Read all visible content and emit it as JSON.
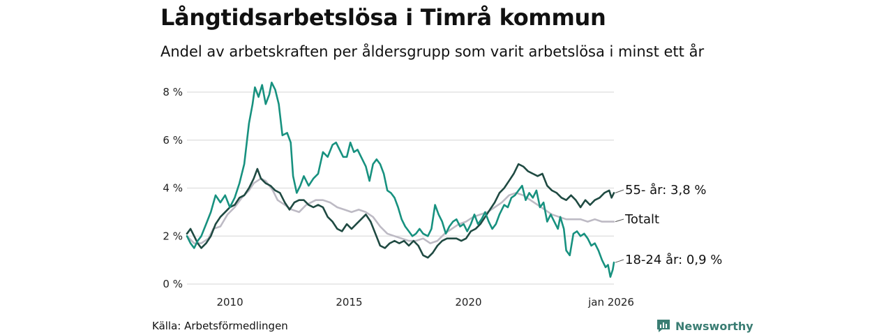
{
  "header": {
    "title": "Långtidsarbetslösa i Timrå kommun",
    "subtitle": "Andel av arbetskraften per åldersgrupp som varit arbetslösa i minst ett år"
  },
  "footer": {
    "source": "Källa: Arbetsförmedlingen",
    "brand": "Newsworthy"
  },
  "colors": {
    "youth": "#17917f",
    "senior": "#1f4a42",
    "total": "#bdbac4",
    "grid": "#dddddd",
    "brand": "#3a7d73"
  },
  "chart_data": {
    "type": "line",
    "title": "Långtidsarbetslösa i Timrå kommun",
    "subtitle": "Andel av arbetskraften per åldersgrupp som varit arbetslösa i minst ett år",
    "xlabel": "",
    "ylabel": "",
    "xlim": [
      2008.2,
      2026.1
    ],
    "ylim": [
      0,
      8
    ],
    "yticks": [
      0,
      2,
      4,
      6,
      8
    ],
    "ytick_labels": [
      "0 %",
      "2 %",
      "4 %",
      "6 %",
      "8 %"
    ],
    "xticks": [
      2010,
      2015,
      2020,
      2026.1
    ],
    "xtick_labels": [
      "2010",
      "2015",
      "2020",
      "jan 2026"
    ],
    "grid": true,
    "series": [
      {
        "name": "Totalt",
        "label": "Totalt",
        "color": "#bdbac4",
        "points": [
          [
            2008.2,
            2.0
          ],
          [
            2008.5,
            1.7
          ],
          [
            2008.8,
            1.7
          ],
          [
            2009.1,
            1.9
          ],
          [
            2009.3,
            2.3
          ],
          [
            2009.6,
            2.4
          ],
          [
            2009.9,
            2.9
          ],
          [
            2010.2,
            3.2
          ],
          [
            2010.5,
            3.6
          ],
          [
            2010.8,
            3.9
          ],
          [
            2011.0,
            4.2
          ],
          [
            2011.3,
            4.4
          ],
          [
            2011.5,
            4.3
          ],
          [
            2011.8,
            3.9
          ],
          [
            2012.0,
            3.5
          ],
          [
            2012.3,
            3.3
          ],
          [
            2012.6,
            3.1
          ],
          [
            2012.9,
            3.0
          ],
          [
            2013.2,
            3.3
          ],
          [
            2013.6,
            3.5
          ],
          [
            2013.9,
            3.5
          ],
          [
            2014.2,
            3.4
          ],
          [
            2014.5,
            3.2
          ],
          [
            2014.8,
            3.1
          ],
          [
            2015.1,
            3.0
          ],
          [
            2015.4,
            3.1
          ],
          [
            2015.7,
            3.0
          ],
          [
            2016.0,
            2.8
          ],
          [
            2016.3,
            2.4
          ],
          [
            2016.6,
            2.1
          ],
          [
            2016.9,
            2.0
          ],
          [
            2017.2,
            1.9
          ],
          [
            2017.5,
            1.8
          ],
          [
            2017.8,
            1.8
          ],
          [
            2018.1,
            1.9
          ],
          [
            2018.4,
            1.7
          ],
          [
            2018.7,
            1.8
          ],
          [
            2019.0,
            2.1
          ],
          [
            2019.3,
            2.3
          ],
          [
            2019.6,
            2.5
          ],
          [
            2019.9,
            2.6
          ],
          [
            2020.2,
            2.8
          ],
          [
            2020.5,
            2.9
          ],
          [
            2020.8,
            3.0
          ],
          [
            2021.1,
            3.2
          ],
          [
            2021.4,
            3.4
          ],
          [
            2021.7,
            3.7
          ],
          [
            2022.0,
            3.8
          ],
          [
            2022.3,
            3.7
          ],
          [
            2022.6,
            3.5
          ],
          [
            2022.9,
            3.3
          ],
          [
            2023.2,
            3.1
          ],
          [
            2023.5,
            2.9
          ],
          [
            2023.8,
            2.8
          ],
          [
            2024.1,
            2.7
          ],
          [
            2024.4,
            2.7
          ],
          [
            2024.7,
            2.7
          ],
          [
            2025.0,
            2.6
          ],
          [
            2025.3,
            2.7
          ],
          [
            2025.6,
            2.6
          ],
          [
            2025.9,
            2.6
          ],
          [
            2026.1,
            2.6
          ]
        ]
      },
      {
        "name": "55- år",
        "label": "55- år: 3,8 %",
        "color": "#1f4a42",
        "points": [
          [
            2008.2,
            2.1
          ],
          [
            2008.35,
            2.3
          ],
          [
            2008.5,
            2.0
          ],
          [
            2008.65,
            1.7
          ],
          [
            2008.8,
            1.5
          ],
          [
            2009.0,
            1.7
          ],
          [
            2009.2,
            2.0
          ],
          [
            2009.4,
            2.5
          ],
          [
            2009.6,
            2.8
          ],
          [
            2009.8,
            3.0
          ],
          [
            2010.0,
            3.2
          ],
          [
            2010.2,
            3.3
          ],
          [
            2010.4,
            3.6
          ],
          [
            2010.6,
            3.7
          ],
          [
            2010.8,
            4.0
          ],
          [
            2011.0,
            4.4
          ],
          [
            2011.15,
            4.8
          ],
          [
            2011.3,
            4.4
          ],
          [
            2011.5,
            4.2
          ],
          [
            2011.7,
            4.1
          ],
          [
            2011.9,
            3.9
          ],
          [
            2012.1,
            3.8
          ],
          [
            2012.3,
            3.4
          ],
          [
            2012.5,
            3.1
          ],
          [
            2012.7,
            3.4
          ],
          [
            2012.9,
            3.5
          ],
          [
            2013.1,
            3.5
          ],
          [
            2013.3,
            3.3
          ],
          [
            2013.5,
            3.2
          ],
          [
            2013.7,
            3.3
          ],
          [
            2013.9,
            3.2
          ],
          [
            2014.1,
            2.8
          ],
          [
            2014.3,
            2.6
          ],
          [
            2014.5,
            2.3
          ],
          [
            2014.7,
            2.2
          ],
          [
            2014.9,
            2.5
          ],
          [
            2015.1,
            2.3
          ],
          [
            2015.3,
            2.5
          ],
          [
            2015.5,
            2.7
          ],
          [
            2015.7,
            2.9
          ],
          [
            2015.9,
            2.6
          ],
          [
            2016.1,
            2.1
          ],
          [
            2016.3,
            1.6
          ],
          [
            2016.5,
            1.5
          ],
          [
            2016.7,
            1.7
          ],
          [
            2016.9,
            1.8
          ],
          [
            2017.1,
            1.7
          ],
          [
            2017.3,
            1.8
          ],
          [
            2017.5,
            1.6
          ],
          [
            2017.7,
            1.8
          ],
          [
            2017.9,
            1.6
          ],
          [
            2018.1,
            1.2
          ],
          [
            2018.3,
            1.1
          ],
          [
            2018.5,
            1.3
          ],
          [
            2018.7,
            1.6
          ],
          [
            2018.9,
            1.8
          ],
          [
            2019.1,
            1.9
          ],
          [
            2019.3,
            1.9
          ],
          [
            2019.5,
            1.9
          ],
          [
            2019.7,
            1.8
          ],
          [
            2019.9,
            1.9
          ],
          [
            2020.1,
            2.2
          ],
          [
            2020.3,
            2.3
          ],
          [
            2020.5,
            2.5
          ],
          [
            2020.7,
            2.8
          ],
          [
            2020.9,
            3.1
          ],
          [
            2021.1,
            3.4
          ],
          [
            2021.3,
            3.8
          ],
          [
            2021.5,
            4.0
          ],
          [
            2021.7,
            4.3
          ],
          [
            2021.9,
            4.6
          ],
          [
            2022.1,
            5.0
          ],
          [
            2022.3,
            4.9
          ],
          [
            2022.5,
            4.7
          ],
          [
            2022.7,
            4.6
          ],
          [
            2022.9,
            4.5
          ],
          [
            2023.1,
            4.6
          ],
          [
            2023.3,
            4.1
          ],
          [
            2023.5,
            3.9
          ],
          [
            2023.7,
            3.8
          ],
          [
            2023.9,
            3.6
          ],
          [
            2024.1,
            3.5
          ],
          [
            2024.3,
            3.7
          ],
          [
            2024.5,
            3.5
          ],
          [
            2024.7,
            3.2
          ],
          [
            2024.9,
            3.5
          ],
          [
            2025.1,
            3.3
          ],
          [
            2025.3,
            3.5
          ],
          [
            2025.5,
            3.6
          ],
          [
            2025.7,
            3.8
          ],
          [
            2025.9,
            3.9
          ],
          [
            2026.0,
            3.6
          ],
          [
            2026.1,
            3.8
          ]
        ]
      },
      {
        "name": "18-24 år",
        "label": "18-24 år: 0,9 %",
        "color": "#17917f",
        "points": [
          [
            2008.2,
            2.0
          ],
          [
            2008.35,
            1.7
          ],
          [
            2008.5,
            1.5
          ],
          [
            2008.65,
            1.8
          ],
          [
            2008.8,
            2.0
          ],
          [
            2009.0,
            2.5
          ],
          [
            2009.2,
            3.0
          ],
          [
            2009.4,
            3.7
          ],
          [
            2009.6,
            3.4
          ],
          [
            2009.8,
            3.7
          ],
          [
            2010.0,
            3.2
          ],
          [
            2010.2,
            3.6
          ],
          [
            2010.4,
            4.2
          ],
          [
            2010.6,
            5.0
          ],
          [
            2010.8,
            6.7
          ],
          [
            2010.95,
            7.5
          ],
          [
            2011.05,
            8.2
          ],
          [
            2011.2,
            7.8
          ],
          [
            2011.35,
            8.3
          ],
          [
            2011.5,
            7.5
          ],
          [
            2011.65,
            7.9
          ],
          [
            2011.75,
            8.4
          ],
          [
            2011.9,
            8.1
          ],
          [
            2012.05,
            7.5
          ],
          [
            2012.2,
            6.2
          ],
          [
            2012.4,
            6.3
          ],
          [
            2012.55,
            5.9
          ],
          [
            2012.65,
            4.5
          ],
          [
            2012.8,
            3.8
          ],
          [
            2012.95,
            4.1
          ],
          [
            2013.1,
            4.5
          ],
          [
            2013.3,
            4.1
          ],
          [
            2013.5,
            4.4
          ],
          [
            2013.7,
            4.6
          ],
          [
            2013.9,
            5.5
          ],
          [
            2014.1,
            5.3
          ],
          [
            2014.3,
            5.8
          ],
          [
            2014.45,
            5.9
          ],
          [
            2014.6,
            5.6
          ],
          [
            2014.75,
            5.3
          ],
          [
            2014.9,
            5.3
          ],
          [
            2015.05,
            5.9
          ],
          [
            2015.2,
            5.5
          ],
          [
            2015.35,
            5.6
          ],
          [
            2015.5,
            5.3
          ],
          [
            2015.7,
            4.9
          ],
          [
            2015.85,
            4.3
          ],
          [
            2016.0,
            5.0
          ],
          [
            2016.15,
            5.2
          ],
          [
            2016.3,
            5.0
          ],
          [
            2016.45,
            4.6
          ],
          [
            2016.6,
            3.9
          ],
          [
            2016.75,
            3.8
          ],
          [
            2016.9,
            3.6
          ],
          [
            2017.05,
            3.2
          ],
          [
            2017.2,
            2.7
          ],
          [
            2017.35,
            2.4
          ],
          [
            2017.5,
            2.2
          ],
          [
            2017.65,
            2.0
          ],
          [
            2017.8,
            2.1
          ],
          [
            2017.95,
            2.3
          ],
          [
            2018.1,
            2.1
          ],
          [
            2018.3,
            2.0
          ],
          [
            2018.45,
            2.3
          ],
          [
            2018.6,
            3.3
          ],
          [
            2018.75,
            2.9
          ],
          [
            2018.9,
            2.6
          ],
          [
            2019.05,
            2.1
          ],
          [
            2019.2,
            2.4
          ],
          [
            2019.35,
            2.6
          ],
          [
            2019.5,
            2.7
          ],
          [
            2019.65,
            2.4
          ],
          [
            2019.8,
            2.5
          ],
          [
            2019.95,
            2.2
          ],
          [
            2020.1,
            2.5
          ],
          [
            2020.25,
            2.9
          ],
          [
            2020.4,
            2.5
          ],
          [
            2020.55,
            2.7
          ],
          [
            2020.7,
            3.0
          ],
          [
            2020.85,
            2.6
          ],
          [
            2021.0,
            2.3
          ],
          [
            2021.15,
            2.5
          ],
          [
            2021.3,
            2.9
          ],
          [
            2021.5,
            3.3
          ],
          [
            2021.65,
            3.2
          ],
          [
            2021.8,
            3.6
          ],
          [
            2021.95,
            3.7
          ],
          [
            2022.1,
            3.9
          ],
          [
            2022.25,
            4.1
          ],
          [
            2022.4,
            3.5
          ],
          [
            2022.55,
            3.8
          ],
          [
            2022.7,
            3.6
          ],
          [
            2022.85,
            3.9
          ],
          [
            2023.0,
            3.2
          ],
          [
            2023.15,
            3.4
          ],
          [
            2023.3,
            2.6
          ],
          [
            2023.45,
            2.9
          ],
          [
            2023.6,
            2.6
          ],
          [
            2023.75,
            2.3
          ],
          [
            2023.85,
            2.8
          ],
          [
            2024.0,
            2.3
          ],
          [
            2024.1,
            1.4
          ],
          [
            2024.25,
            1.2
          ],
          [
            2024.4,
            2.1
          ],
          [
            2024.55,
            2.2
          ],
          [
            2024.7,
            2.0
          ],
          [
            2024.85,
            2.1
          ],
          [
            2025.0,
            1.9
          ],
          [
            2025.15,
            1.6
          ],
          [
            2025.3,
            1.7
          ],
          [
            2025.45,
            1.4
          ],
          [
            2025.6,
            1.0
          ],
          [
            2025.75,
            0.7
          ],
          [
            2025.85,
            0.8
          ],
          [
            2025.95,
            0.3
          ],
          [
            2026.05,
            0.6
          ],
          [
            2026.1,
            0.9
          ]
        ]
      }
    ]
  }
}
